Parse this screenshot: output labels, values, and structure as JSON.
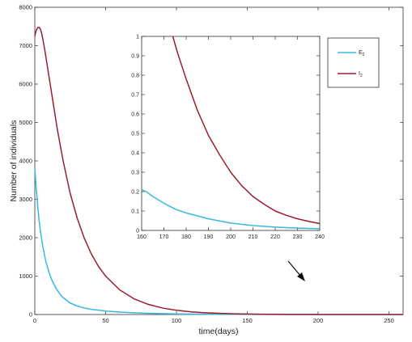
{
  "chart_data": [
    {
      "type": "line",
      "xlabel": "time(days)",
      "ylabel": "Number of individuals",
      "xlim": [
        0,
        260
      ],
      "ylim": [
        0,
        8000
      ],
      "xticks": [
        0,
        50,
        100,
        150,
        200,
        250
      ],
      "yticks": [
        0,
        1000,
        2000,
        3000,
        4000,
        5000,
        6000,
        7000,
        8000
      ],
      "grid": false,
      "legend_position": "top-right",
      "series": [
        {
          "name": "E2",
          "color": "#33bbdd",
          "x": [
            0,
            1,
            2,
            3,
            4,
            6,
            8,
            10,
            12,
            15,
            18,
            20,
            25,
            30,
            35,
            40,
            50,
            60,
            70,
            80,
            90,
            100,
            120,
            140,
            160,
            180,
            200,
            220,
            240,
            260
          ],
          "y": [
            3800,
            3300,
            2850,
            2450,
            2150,
            1700,
            1350,
            1100,
            900,
            680,
            520,
            440,
            300,
            220,
            170,
            135,
            90,
            62,
            45,
            32,
            23,
            16,
            8,
            4,
            2,
            1,
            0.5,
            0.2,
            0.1,
            0
          ]
        },
        {
          "name": "I2",
          "color": "#9b1c31",
          "x": [
            0,
            1,
            2,
            3,
            4,
            5,
            7,
            10,
            13,
            16,
            20,
            25,
            30,
            35,
            40,
            45,
            50,
            60,
            70,
            80,
            90,
            100,
            110,
            120,
            140,
            160,
            180,
            200,
            220,
            240,
            260
          ],
          "y": [
            7250,
            7400,
            7470,
            7480,
            7430,
            7300,
            6900,
            6200,
            5500,
            4800,
            4000,
            3150,
            2500,
            1980,
            1570,
            1250,
            1000,
            640,
            410,
            265,
            170,
            110,
            70,
            45,
            18,
            7,
            3,
            1.2,
            0.5,
            0.2,
            0.1
          ]
        }
      ],
      "xtick_labels": [
        "0",
        "50",
        "100",
        "150",
        "200",
        "250"
      ],
      "ytick_labels": [
        "0",
        "1000",
        "2000",
        "3000",
        "4000",
        "5000",
        "6000",
        "7000",
        "8000"
      ]
    },
    {
      "type": "line",
      "xlim": [
        160,
        240
      ],
      "ylim": [
        0,
        1
      ],
      "xticks": [
        160,
        170,
        180,
        190,
        200,
        210,
        220,
        230,
        240
      ],
      "yticks": [
        0,
        0.1,
        0.2,
        0.3,
        0.4,
        0.5,
        0.6,
        0.7,
        0.8,
        0.9,
        1
      ],
      "grid": false,
      "series": [
        {
          "name": "E2",
          "color": "#33bbdd",
          "x": [
            160,
            162,
            165,
            170,
            175,
            180,
            190,
            200,
            210,
            220,
            230,
            240
          ],
          "y": [
            0.21,
            0.2,
            0.175,
            0.14,
            0.11,
            0.09,
            0.06,
            0.038,
            0.025,
            0.017,
            0.012,
            0.009
          ]
        },
        {
          "name": "I2",
          "color": "#9b1c31",
          "x": [
            174,
            176,
            180,
            185,
            190,
            195,
            200,
            205,
            210,
            215,
            220,
            225,
            230,
            235,
            240
          ],
          "y": [
            1.0,
            0.92,
            0.78,
            0.62,
            0.49,
            0.39,
            0.3,
            0.23,
            0.175,
            0.135,
            0.1,
            0.078,
            0.06,
            0.047,
            0.035
          ]
        }
      ],
      "xtick_labels": [
        "160",
        "170",
        "180",
        "190",
        "200",
        "210",
        "220",
        "230",
        "240"
      ],
      "ytick_labels": [
        "0",
        "0.1",
        "0.2",
        "0.3",
        "0.4",
        "0.5",
        "0.6",
        "0.7",
        "0.8",
        "0.9",
        "1"
      ]
    }
  ],
  "legend": {
    "items": [
      {
        "base": "E",
        "sub": "2",
        "color": "#33bbdd"
      },
      {
        "base": "I",
        "sub": "2",
        "color": "#9b1c31"
      }
    ]
  }
}
